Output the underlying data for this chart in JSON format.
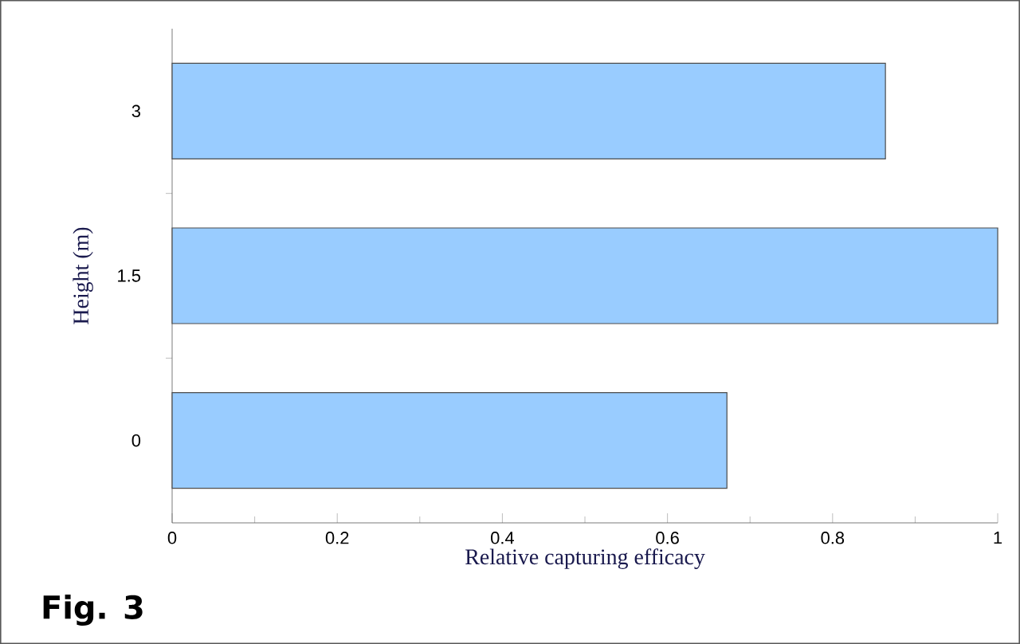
{
  "chart_data": {
    "type": "bar",
    "orientation": "horizontal",
    "xlabel": "Relative capturing efficacy",
    "ylabel": "Height (m)",
    "categories": [
      "3",
      "1.5",
      "0"
    ],
    "values": [
      0.864,
      1.0,
      0.672
    ],
    "color": "#99ccff",
    "xlim": [
      0,
      1
    ],
    "xticks": [
      0,
      0.2,
      0.4,
      0.6,
      0.8,
      1
    ],
    "annotations": [
      "Fig. 3"
    ]
  }
}
